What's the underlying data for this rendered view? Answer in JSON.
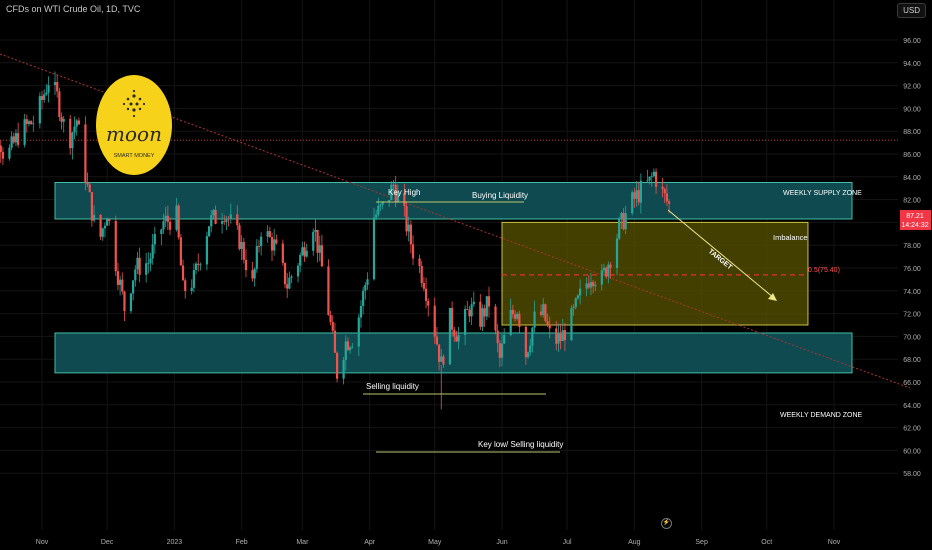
{
  "header": {
    "symbol": "CFDs on WTI Crude Oil, 1D, TVC",
    "currency": "USD"
  },
  "badges": {
    "price_value": "87.21",
    "countdown": "14:24:32"
  },
  "chart_data": {
    "type": "candlestick",
    "ylim": [
      57,
      98
    ],
    "y_ticks": [
      96,
      94,
      92,
      90,
      88,
      86,
      84,
      82,
      80,
      78,
      76,
      74,
      72,
      70,
      68,
      66,
      64,
      62,
      60,
      58
    ],
    "y_tick_labels": [
      "96.00",
      "94.00",
      "92.00",
      "90.00",
      "88.00",
      "86.00",
      "84.00",
      "82.00",
      "80.00",
      "78.00",
      "76.00",
      "74.00",
      "72.00",
      "70.00",
      "68.00",
      "66.00",
      "64.00",
      "62.00",
      "60.00",
      "58.00"
    ],
    "x_ticks": [
      {
        "label": "Nov",
        "date": "2022-11-01"
      },
      {
        "label": "Dec",
        "date": "2022-12-01"
      },
      {
        "label": "2023",
        "date": "2023-01-01"
      },
      {
        "label": "Feb",
        "date": "2023-02-01"
      },
      {
        "label": "Mar",
        "date": "2023-03-01"
      },
      {
        "label": "Apr",
        "date": "2023-04-01"
      },
      {
        "label": "May",
        "date": "2023-05-01"
      },
      {
        "label": "Jun",
        "date": "2023-06-01"
      },
      {
        "label": "Jul",
        "date": "2023-07-01"
      },
      {
        "label": "Aug",
        "date": "2023-08-01"
      },
      {
        "label": "Sep",
        "date": "2023-09-01"
      },
      {
        "label": "Oct",
        "date": "2023-10-01"
      },
      {
        "label": "Nov",
        "date": "2023-11-01"
      }
    ],
    "price_path": [
      {
        "date": "2022-10-01",
        "close": 87.5
      },
      {
        "date": "2022-10-08",
        "close": 90.5
      },
      {
        "date": "2022-10-15",
        "close": 85.5
      },
      {
        "date": "2022-10-22",
        "close": 88.0
      },
      {
        "date": "2022-10-29",
        "close": 89.0
      },
      {
        "date": "2022-11-04",
        "close": 92.5
      },
      {
        "date": "2022-11-08",
        "close": 91.0
      },
      {
        "date": "2022-11-13",
        "close": 87.0
      },
      {
        "date": "2022-11-17",
        "close": 89.0
      },
      {
        "date": "2022-11-22",
        "close": 83.0
      },
      {
        "date": "2022-11-27",
        "close": 78.0
      },
      {
        "date": "2022-12-01",
        "close": 81.0
      },
      {
        "date": "2022-12-05",
        "close": 76.5
      },
      {
        "date": "2022-12-09",
        "close": 72.5
      },
      {
        "date": "2022-12-14",
        "close": 76.0
      },
      {
        "date": "2022-12-20",
        "close": 76.5
      },
      {
        "date": "2022-12-27",
        "close": 80.0
      },
      {
        "date": "2023-01-02",
        "close": 80.5
      },
      {
        "date": "2023-01-05",
        "close": 74.0
      },
      {
        "date": "2023-01-10",
        "close": 75.0
      },
      {
        "date": "2023-01-17",
        "close": 80.0
      },
      {
        "date": "2023-01-24",
        "close": 81.0
      },
      {
        "date": "2023-01-31",
        "close": 78.5
      },
      {
        "date": "2023-02-06",
        "close": 74.5
      },
      {
        "date": "2023-02-10",
        "close": 79.5
      },
      {
        "date": "2023-02-16",
        "close": 78.0
      },
      {
        "date": "2023-02-22",
        "close": 74.5
      },
      {
        "date": "2023-02-28",
        "close": 77.0
      },
      {
        "date": "2023-03-06",
        "close": 80.0
      },
      {
        "date": "2023-03-10",
        "close": 76.0
      },
      {
        "date": "2023-03-14",
        "close": 71.0
      },
      {
        "date": "2023-03-17",
        "close": 66.8
      },
      {
        "date": "2023-03-21",
        "close": 69.5
      },
      {
        "date": "2023-03-25",
        "close": 70.0
      },
      {
        "date": "2023-03-31",
        "close": 75.5
      },
      {
        "date": "2023-04-03",
        "close": 80.5
      },
      {
        "date": "2023-04-08",
        "close": 81.5
      },
      {
        "date": "2023-04-12",
        "close": 83.3
      },
      {
        "date": "2023-04-17",
        "close": 80.5
      },
      {
        "date": "2023-04-21",
        "close": 77.5
      },
      {
        "date": "2023-04-26",
        "close": 75.0
      },
      {
        "date": "2023-05-01",
        "close": 70.5
      },
      {
        "date": "2023-05-04",
        "close": 67.5
      },
      {
        "date": "2023-05-08",
        "close": 71.5
      },
      {
        "date": "2023-05-12",
        "close": 70.0
      },
      {
        "date": "2023-05-17",
        "close": 72.5
      },
      {
        "date": "2023-05-22",
        "close": 71.5
      },
      {
        "date": "2023-05-26",
        "close": 73.0
      },
      {
        "date": "2023-05-31",
        "close": 68.0
      },
      {
        "date": "2023-06-04",
        "close": 71.5
      },
      {
        "date": "2023-06-08",
        "close": 72.5
      },
      {
        "date": "2023-06-12",
        "close": 68.5
      },
      {
        "date": "2023-06-16",
        "close": 71.5
      },
      {
        "date": "2023-06-20",
        "close": 72.0
      },
      {
        "date": "2023-06-24",
        "close": 69.5
      },
      {
        "date": "2023-06-28",
        "close": 69.8
      },
      {
        "date": "2023-07-03",
        "close": 71.5
      },
      {
        "date": "2023-07-07",
        "close": 73.5
      },
      {
        "date": "2023-07-12",
        "close": 75.5
      },
      {
        "date": "2023-07-17",
        "close": 75.0
      },
      {
        "date": "2023-07-21",
        "close": 77.0
      },
      {
        "date": "2023-07-25",
        "close": 79.5
      },
      {
        "date": "2023-07-31",
        "close": 81.8
      },
      {
        "date": "2023-08-04",
        "close": 82.8
      },
      {
        "date": "2023-08-08",
        "close": 83.5
      },
      {
        "date": "2023-08-10",
        "close": 84.3
      },
      {
        "date": "2023-08-14",
        "close": 82.5
      },
      {
        "date": "2023-08-17",
        "close": 81.5
      }
    ]
  },
  "zones": {
    "supply": {
      "label": "WEEKLY SUPPLY ZONE",
      "y1": 83.5,
      "y2": 80.3,
      "color": "#0e4a4f",
      "border": "#3fbfa8"
    },
    "demand": {
      "label": "WEEKLY DEMAND ZONE",
      "y1": 70.3,
      "y2": 66.8,
      "color": "#0e4a4f",
      "border": "#3fbfa8"
    },
    "imbalance": {
      "label": "Imbalance",
      "y1": 80.0,
      "y2": 71.0,
      "color": "#5a5400",
      "border": "#c8c040",
      "x1": "2023-06-01",
      "x2": "2023-10-20"
    }
  },
  "annotations": {
    "key_high": "Key High",
    "buying_liquidity": "Buying Liquidity",
    "selling_liquidity": "Selling liquidity",
    "key_low": "Key low/ Selling liquidity",
    "target": "TARGET",
    "fib": "0.5(75.40)"
  },
  "logo": {
    "word": "moon",
    "tag": "SMART MONEY"
  },
  "colors": {
    "up": "#26a69a",
    "down": "#ef5350",
    "badge": "#f23645"
  }
}
